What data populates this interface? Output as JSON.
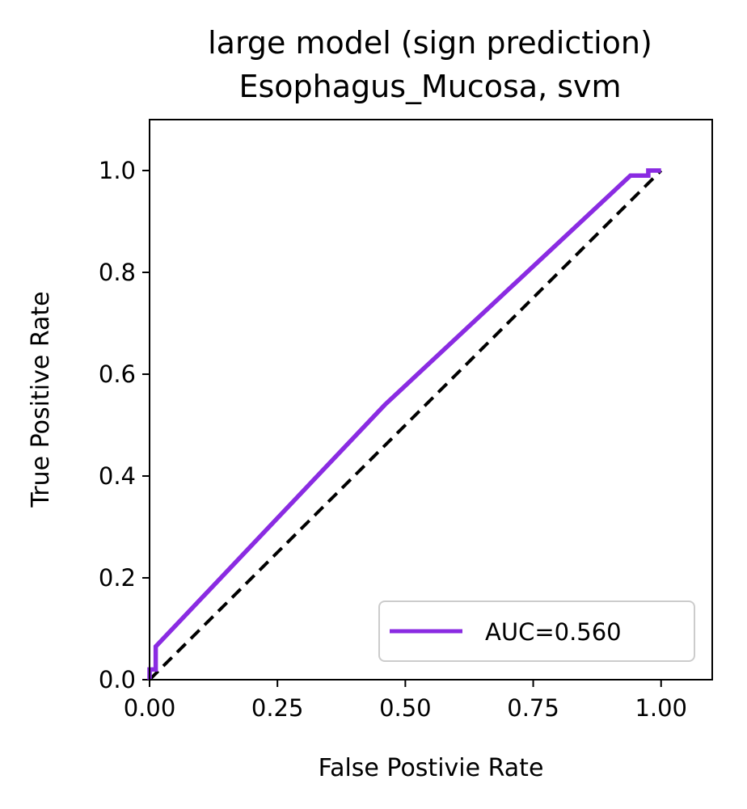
{
  "chart_data": {
    "type": "line",
    "title": "large model (sign prediction)",
    "subtitle": "Esophagus_Mucosa, svm",
    "xlabel": "False Postivie Rate",
    "ylabel": "True Positive Rate",
    "xlim": [
      0,
      1.1
    ],
    "ylim": [
      0,
      1.1
    ],
    "xticks": [
      0,
      0.25,
      0.5,
      0.75,
      1.0
    ],
    "xtick_labels": [
      "0.00",
      "0.25",
      "0.50",
      "0.75",
      "1.00"
    ],
    "yticks": [
      0,
      0.2,
      0.4,
      0.6,
      0.8,
      1.0
    ],
    "ytick_labels": [
      "0.0",
      "0.2",
      "0.4",
      "0.6",
      "0.8",
      "1.0"
    ],
    "grid": false,
    "legend_position": "lower-right",
    "series": [
      {
        "name": "AUC=0.560",
        "color": "#8a2be2",
        "x": [
          0.0,
          0.0,
          0.012,
          0.012,
          0.46,
          0.94,
          0.975,
          0.975,
          1.0
        ],
        "y": [
          0.0,
          0.02,
          0.02,
          0.065,
          0.54,
          0.99,
          0.99,
          1.0,
          1.0
        ]
      }
    ],
    "reference_line": {
      "style": "dashed",
      "color": "#000000",
      "x": [
        0,
        1
      ],
      "y": [
        0,
        1
      ]
    }
  }
}
